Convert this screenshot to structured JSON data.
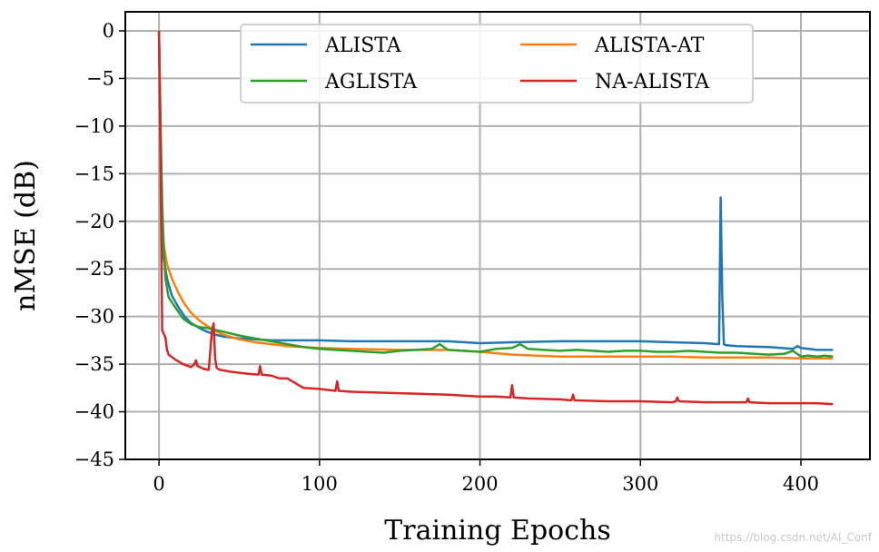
{
  "chart_data": {
    "type": "line",
    "title": "",
    "xlabel": "Training Epochs",
    "ylabel": "nMSE (dB)",
    "xlim": [
      -21,
      443
    ],
    "ylim": [
      -45,
      2
    ],
    "xticks": [
      0,
      100,
      200,
      300,
      400
    ],
    "yticks": [
      0,
      -5,
      -10,
      -15,
      -20,
      -25,
      -30,
      -35,
      -40,
      -45
    ],
    "grid": true,
    "legend_position": "top-center",
    "legend_columns": 2,
    "series": [
      {
        "name": "ALISTA",
        "color": "#1f77b4",
        "x": [
          0,
          1,
          2,
          3,
          5,
          8,
          12,
          16,
          20,
          25,
          30,
          35,
          40,
          50,
          60,
          70,
          80,
          100,
          120,
          150,
          180,
          200,
          220,
          250,
          280,
          300,
          320,
          340,
          349,
          350,
          351,
          352,
          353,
          360,
          380,
          395,
          398,
          400,
          405,
          410,
          420
        ],
        "y": [
          0,
          -12,
          -20,
          -24,
          -26,
          -27.8,
          -29,
          -30,
          -30.7,
          -31.2,
          -31.6,
          -31.9,
          -32.1,
          -32.3,
          -32.4,
          -32.5,
          -32.5,
          -32.5,
          -32.6,
          -32.6,
          -32.6,
          -32.8,
          -32.7,
          -32.6,
          -32.6,
          -32.6,
          -32.7,
          -32.8,
          -32.9,
          -17.5,
          -28,
          -32.9,
          -33.0,
          -33.1,
          -33.2,
          -33.4,
          -33.1,
          -33.3,
          -33.4,
          -33.5,
          -33.5
        ]
      },
      {
        "name": "ALISTA-AT",
        "color": "#ff7f0e",
        "x": [
          0,
          1,
          2,
          3,
          5,
          8,
          12,
          16,
          20,
          25,
          30,
          35,
          40,
          50,
          60,
          70,
          80,
          100,
          120,
          150,
          180,
          200,
          220,
          250,
          280,
          300,
          320,
          340,
          360,
          380,
          400,
          420
        ],
        "y": [
          0,
          -12,
          -19.5,
          -22.5,
          -24.5,
          -26,
          -27.5,
          -28.7,
          -29.6,
          -30.4,
          -31,
          -31.5,
          -31.9,
          -32.4,
          -32.7,
          -32.9,
          -33.1,
          -33.3,
          -33.4,
          -33.5,
          -33.5,
          -33.7,
          -34,
          -34.2,
          -34.2,
          -34.2,
          -34.2,
          -34.3,
          -34.3,
          -34.3,
          -34.4,
          -34.4
        ]
      },
      {
        "name": "AGLISTA",
        "color": "#2ca02c",
        "x": [
          0,
          1,
          2,
          3,
          4,
          6,
          10,
          15,
          20,
          25,
          30,
          35,
          40,
          50,
          60,
          70,
          80,
          90,
          100,
          110,
          120,
          130,
          140,
          150,
          160,
          170,
          175,
          180,
          190,
          200,
          210,
          220,
          225,
          230,
          240,
          250,
          260,
          270,
          280,
          290,
          300,
          310,
          320,
          330,
          340,
          350,
          360,
          370,
          380,
          390,
          395,
          400,
          405,
          410,
          415,
          420
        ],
        "y": [
          0,
          -10,
          -18,
          -23,
          -26,
          -28,
          -29,
          -30.2,
          -30.8,
          -31.1,
          -31.2,
          -31.4,
          -31.6,
          -32,
          -32.3,
          -32.6,
          -32.9,
          -33.2,
          -33.4,
          -33.5,
          -33.6,
          -33.7,
          -33.8,
          -33.6,
          -33.5,
          -33.4,
          -32.9,
          -33.5,
          -33.6,
          -33.7,
          -33.4,
          -33.3,
          -32.9,
          -33.4,
          -33.5,
          -33.6,
          -33.5,
          -33.6,
          -33.7,
          -33.6,
          -33.6,
          -33.7,
          -33.7,
          -33.6,
          -33.7,
          -33.8,
          -33.8,
          -33.9,
          -34.0,
          -33.9,
          -33.6,
          -34.2,
          -34.1,
          -34.2,
          -34.1,
          -34.2
        ]
      },
      {
        "name": "NA-ALISTA",
        "color": "#d62728",
        "x": [
          0,
          1,
          2,
          3,
          4,
          5,
          6,
          10,
          15,
          20,
          22,
          23,
          24,
          28,
          31,
          33,
          34,
          35,
          36,
          38,
          45,
          55,
          62,
          63,
          64,
          70,
          75,
          80,
          90,
          100,
          110,
          111,
          112,
          120,
          140,
          160,
          180,
          200,
          210,
          219,
          220,
          221,
          230,
          250,
          257,
          258,
          259,
          280,
          300,
          320,
          322,
          323,
          324,
          340,
          360,
          366,
          367,
          368,
          380,
          400,
          410,
          420
        ],
        "y": [
          0,
          -15,
          -31.5,
          -31.8,
          -32.2,
          -33.5,
          -34,
          -34.5,
          -35,
          -35.3,
          -35,
          -34.6,
          -35.2,
          -35.5,
          -35.6,
          -31.5,
          -30.7,
          -34.5,
          -35.4,
          -35.6,
          -35.8,
          -36,
          -36.1,
          -35.2,
          -36.1,
          -36.2,
          -36.5,
          -36.5,
          -37.5,
          -37.6,
          -37.8,
          -36.8,
          -37.8,
          -37.9,
          -38,
          -38.1,
          -38.2,
          -38.4,
          -38.4,
          -38.5,
          -37.2,
          -38.5,
          -38.6,
          -38.7,
          -38.8,
          -38.2,
          -38.8,
          -38.9,
          -38.9,
          -39,
          -38.9,
          -38.5,
          -38.9,
          -39,
          -39,
          -39,
          -38.6,
          -39,
          -39.1,
          -39.1,
          -39.1,
          -39.2
        ]
      }
    ]
  },
  "watermark": "https://blog.csdn.net/AI_Conf"
}
